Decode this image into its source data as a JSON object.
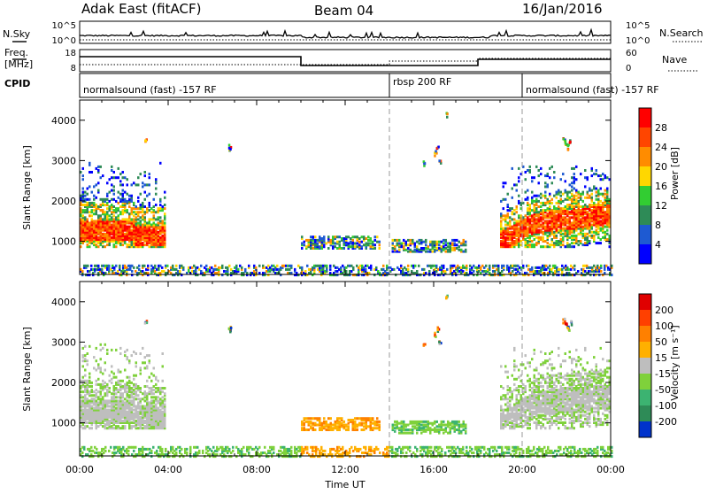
{
  "header": {
    "title": "Adak East (fitACF)",
    "beam": "Beam 04",
    "date": "16/Jan/2016"
  },
  "noise_panel": {
    "left_label": "N.Sky",
    "right_label": "N.Search",
    "left_ticks": [
      "10^5",
      "10^0"
    ],
    "right_ticks": [
      "10^5",
      "10^0"
    ]
  },
  "freq_panel": {
    "left_label_1": "Freq.",
    "left_label_2": "[MHz]",
    "right_label": "Nave",
    "left_ticks": [
      "18",
      "8"
    ],
    "right_ticks": [
      "60",
      "0"
    ]
  },
  "cpid": {
    "label": "CPID",
    "segments": [
      {
        "text": "normalsound (fast) -157 RF",
        "start_hour": 0,
        "end_hour": 14
      },
      {
        "text": "rbsp 200 RF",
        "start_hour": 14,
        "end_hour": 20
      },
      {
        "text": "normalsound (fast) -157 RF",
        "start_hour": 20,
        "end_hour": 24
      }
    ]
  },
  "chart_data": [
    {
      "type": "heatmap",
      "title": "",
      "xlabel": "",
      "ylabel": "Slant Range [km]",
      "xlim": [
        0,
        24
      ],
      "ylim": [
        180,
        4500
      ],
      "yticks": [
        1000,
        2000,
        3000,
        4000
      ],
      "colorbar": {
        "label": "Power [dB]",
        "ticks": [
          "4",
          "8",
          "12",
          "16",
          "20",
          "24",
          "28"
        ],
        "colors": [
          "#0000ff",
          "#1e5ad2",
          "#2e8b57",
          "#32cd32",
          "#ffd700",
          "#ff8c00",
          "#ff4500",
          "#ff0000"
        ]
      },
      "regions": [
        {
          "t_start": 0.0,
          "t_end": 3.9,
          "range_start": 900,
          "range_end": 3000,
          "dominant": "orange-green"
        },
        {
          "t_start": 10.0,
          "t_end": 18.0,
          "range_start": 700,
          "range_end": 1200,
          "dominant": "blue-green"
        },
        {
          "t_start": 19.0,
          "t_end": 24.0,
          "range_start": 900,
          "range_end": 2800,
          "dominant": "orange-green"
        }
      ]
    },
    {
      "type": "heatmap",
      "title": "",
      "xlabel": "Time UT",
      "ylabel": "Slant Range [km]",
      "xlim": [
        0,
        24
      ],
      "ylim": [
        180,
        4500
      ],
      "yticks": [
        1000,
        2000,
        3000,
        4000
      ],
      "xticks": [
        "00:00",
        "04:00",
        "08:00",
        "12:00",
        "16:00",
        "20:00",
        "00:00"
      ],
      "colorbar": {
        "label": "Velocity [m s⁻¹]",
        "ticks": [
          "200",
          "100",
          "50",
          "15",
          "-15",
          "-50",
          "-100",
          "-200"
        ],
        "colors": [
          "#0033cc",
          "#2e8b57",
          "#3cb371",
          "#7fd13b",
          "#bebebe",
          "#ffb000",
          "#ff8000",
          "#ff4000",
          "#e00000"
        ]
      },
      "regions": [
        {
          "t_start": 0.0,
          "t_end": 3.9,
          "range_start": 900,
          "range_end": 3000,
          "dominant": "grey"
        },
        {
          "t_start": 10.0,
          "t_end": 18.0,
          "range_start": 700,
          "range_end": 1200,
          "dominant": "orange-green"
        },
        {
          "t_start": 19.0,
          "t_end": 24.0,
          "range_start": 900,
          "range_end": 2800,
          "dominant": "grey-green"
        }
      ]
    }
  ],
  "dashed_markers_hours": [
    14,
    20
  ]
}
